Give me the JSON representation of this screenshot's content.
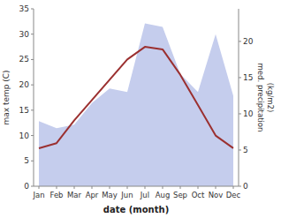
{
  "chart_data": {
    "type": "line",
    "xlabel": "date (month)",
    "ylabel": "max temp (C)",
    "y2label": "med. precipitation\n(kg/m2)",
    "categories": [
      "Jan",
      "Feb",
      "Mar",
      "Apr",
      "May",
      "Jun",
      "Jul",
      "Aug",
      "Sep",
      "Oct",
      "Nov",
      "Dec"
    ],
    "series": [
      {
        "type": "area",
        "axis": "y2",
        "color": "#c5cded",
        "values": [
          9.0,
          8.0,
          8.5,
          11.5,
          13.5,
          13.0,
          22.5,
          22.0,
          15.5,
          13.0,
          21.0,
          12.5
        ]
      },
      {
        "type": "line",
        "color": "#9b3030",
        "values": [
          7.5,
          8.5,
          13.0,
          17.0,
          21.0,
          25.0,
          27.5,
          27.0,
          22.0,
          16.0,
          10.0,
          7.5
        ]
      }
    ],
    "ylim": [
      0,
      35
    ],
    "yticks": [
      0,
      5,
      10,
      15,
      20,
      25,
      30,
      35
    ],
    "y2lim": [
      0,
      24.5
    ],
    "y2ticks": [
      0,
      5,
      10,
      15,
      20
    ],
    "grid": false
  }
}
